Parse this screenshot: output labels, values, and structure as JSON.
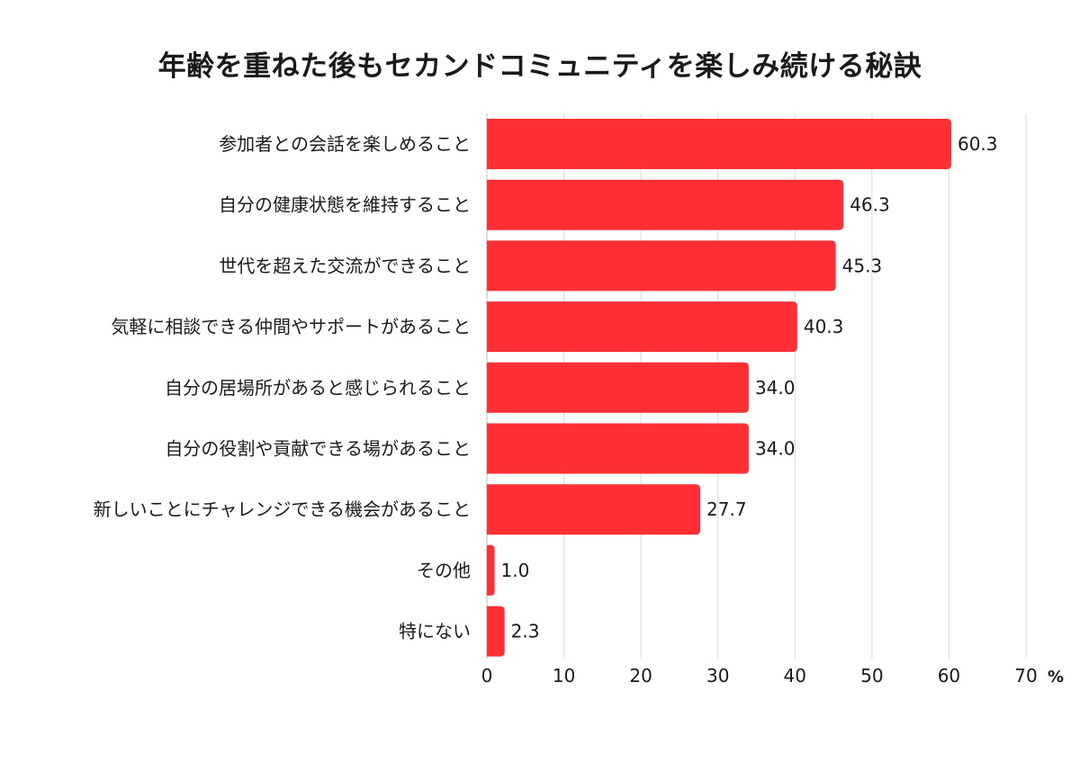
{
  "chart_data": {
    "type": "bar",
    "orientation": "horizontal",
    "title": "年齢を重ねた後もセカンドコミュニティを楽しみ続ける秘訣",
    "categories": [
      "参加者との会話を楽しめること",
      "自分の健康状態を維持すること",
      "世代を超えた交流ができること",
      "気軽に相談できる仲間やサポートがあること",
      "自分の居場所があると感じられること",
      "自分の役割や貢献できる場があること",
      "新しいことにチャレンジできる機会があること",
      "その他",
      "特にない"
    ],
    "values": [
      60.3,
      46.3,
      45.3,
      40.3,
      34.0,
      34.0,
      27.7,
      1.0,
      2.3
    ],
    "value_labels": [
      "60.3",
      "46.3",
      "45.3",
      "40.3",
      "34.0",
      "34.0",
      "27.7",
      "1.0",
      "2.3"
    ],
    "xlim": [
      0,
      70
    ],
    "x_ticks": [
      "0",
      "10",
      "20",
      "30",
      "40",
      "50",
      "60",
      "70"
    ],
    "x_tick_values": [
      0,
      10,
      20,
      30,
      40,
      50,
      60,
      70
    ],
    "unit": "%",
    "bar_color": "#ff2f35",
    "grid": true
  }
}
